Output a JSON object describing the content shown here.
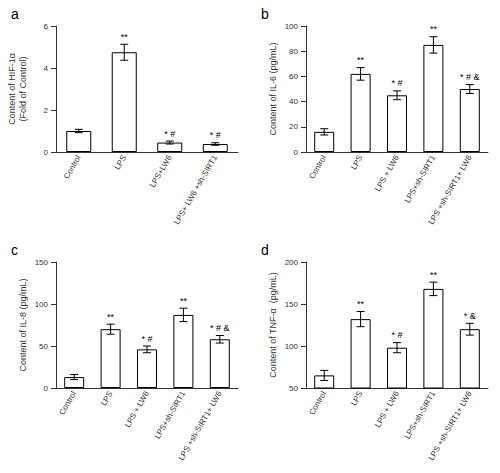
{
  "chart_data": [
    {
      "type": "bar",
      "title": "a",
      "categories": [
        "Control",
        "LPS",
        "LPS+LW6",
        "LPS+ LW6 +sh-SIRT1"
      ],
      "values": [
        1.0,
        4.75,
        0.45,
        0.38
      ],
      "errors": [
        0.08,
        0.38,
        0.07,
        0.06
      ],
      "ylabel": "Content of HIF-1α\n(Fold of Control)",
      "ylim": [
        0,
        6
      ],
      "yticks": [
        0,
        2,
        4,
        6
      ],
      "annotations": [
        {
          "x": "LPS",
          "text": "**"
        },
        {
          "x": "LPS+LW6",
          "text": "* #"
        },
        {
          "x": "LPS+ LW6 +sh-SIRT1",
          "text": "* #"
        }
      ],
      "color": "#ffffff",
      "grid": false
    },
    {
      "type": "bar",
      "title": "b",
      "categories": [
        "Control",
        "LPS",
        "LPS + LW6",
        "LPS+sh-SIRT1",
        "LPS +sh-SIRT1+ LW6"
      ],
      "values": [
        16,
        62,
        45,
        85,
        50
      ],
      "errors": [
        2.5,
        5.0,
        3.5,
        6.5,
        3.5
      ],
      "ylabel": "Content of IL-6 (pg/mL)",
      "ylim": [
        0,
        100
      ],
      "yticks": [
        0,
        20,
        40,
        60,
        80,
        100
      ],
      "annotations": [
        {
          "x": "LPS",
          "text": "**"
        },
        {
          "x": "LPS + LW6",
          "text": "* #"
        },
        {
          "x": "LPS+sh-SIRT1",
          "text": "**"
        },
        {
          "x": "LPS +sh-SIRT1+ LW6",
          "text": "* # &"
        }
      ],
      "color": "#ffffff",
      "grid": false
    },
    {
      "type": "bar",
      "title": "c",
      "categories": [
        "Control",
        "LPS",
        "LPS + LW6",
        "LPS+sh-SIRT1",
        "LPS +sh-SIRT1+ LW6"
      ],
      "values": [
        13,
        70,
        46,
        87,
        58
      ],
      "errors": [
        3.0,
        6.0,
        4.0,
        8.0,
        4.5
      ],
      "ylabel": "Content of IL-8 (pg/mL)",
      "ylim": [
        0,
        150
      ],
      "yticks": [
        0,
        50,
        100,
        150
      ],
      "annotations": [
        {
          "x": "LPS",
          "text": "**"
        },
        {
          "x": "LPS + LW6",
          "text": "* #"
        },
        {
          "x": "LPS+sh-SIRT1",
          "text": "**"
        },
        {
          "x": "LPS +sh-SIRT1+ LW6",
          "text": "* # &"
        }
      ],
      "color": "#ffffff",
      "grid": false
    },
    {
      "type": "bar",
      "title": "d",
      "categories": [
        "Control",
        "LPS",
        "LPS + LW6",
        "LPS+sh-SIRT1",
        "LPS +sh-SIRT1+ LW6"
      ],
      "values": [
        65,
        132,
        98,
        168,
        120
      ],
      "errors": [
        6.0,
        9.0,
        6.0,
        8.0,
        7.0
      ],
      "ylabel": "Content of TNF-α  (pg/mL)",
      "ylim": [
        50,
        200
      ],
      "yticks": [
        50,
        100,
        150,
        200
      ],
      "annotations": [
        {
          "x": "LPS",
          "text": "**"
        },
        {
          "x": "LPS + LW6",
          "text": "* #"
        },
        {
          "x": "LPS+sh-SIRT1",
          "text": "**"
        },
        {
          "x": "LPS +sh-SIRT1+ LW6",
          "text": "* &"
        }
      ],
      "color": "#ffffff",
      "grid": false
    }
  ]
}
